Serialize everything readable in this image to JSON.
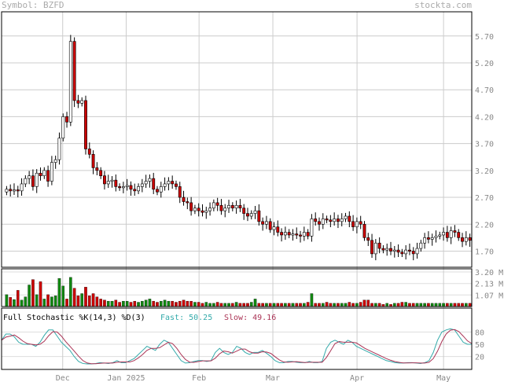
{
  "header": {
    "symbol_label": "Symbol: BZFD",
    "site": "stockta.com"
  },
  "chart_data": [
    {
      "type": "candlestick",
      "title": "",
      "yticks": [
        "5.70",
        "5.20",
        "4.70",
        "4.20",
        "3.70",
        "3.20",
        "2.70",
        "2.20",
        "1.70"
      ],
      "ylim": [
        1.4,
        6.15
      ],
      "grid": true,
      "xticks": [
        "Dec",
        "Jan 2025",
        "Feb",
        "Mar",
        "Apr",
        "May"
      ],
      "colors": {
        "up": "#ffffff",
        "down": "#cc0000",
        "wick": "#000000"
      },
      "close": [
        2.85,
        2.82,
        2.84,
        2.82,
        2.95,
        3.05,
        3.1,
        2.9,
        3.15,
        3.1,
        3.2,
        3.0,
        3.35,
        3.4,
        3.8,
        4.2,
        4.1,
        5.6,
        4.5,
        4.45,
        4.5,
        3.6,
        3.5,
        3.25,
        3.2,
        3.1,
        2.95,
        3.0,
        3.02,
        2.9,
        2.88,
        2.9,
        2.92,
        2.85,
        2.82,
        2.9,
        2.95,
        3.0,
        3.05,
        2.85,
        2.8,
        2.9,
        2.95,
        3.0,
        2.95,
        2.9,
        2.7,
        2.62,
        2.6,
        2.45,
        2.5,
        2.45,
        2.42,
        2.45,
        2.5,
        2.6,
        2.55,
        2.45,
        2.5,
        2.55,
        2.5,
        2.55,
        2.5,
        2.4,
        2.35,
        2.4,
        2.45,
        2.25,
        2.2,
        2.25,
        2.1,
        2.15,
        2.05,
        2.0,
        2.05,
        2.0,
        2.02,
        2.0,
        1.98,
        2.05,
        1.98,
        2.3,
        2.25,
        2.2,
        2.3,
        2.28,
        2.25,
        2.3,
        2.25,
        2.3,
        2.35,
        2.25,
        2.15,
        2.25,
        2.2,
        1.95,
        1.9,
        1.65,
        1.85,
        1.75,
        1.72,
        1.75,
        1.7,
        1.72,
        1.68,
        1.65,
        1.72,
        1.7,
        1.65,
        1.75,
        1.85,
        1.95,
        1.92,
        1.95,
        1.98,
        2.0,
        2.05,
        1.95,
        2.08,
        2.05,
        1.95,
        1.88,
        1.95,
        1.9
      ],
      "volume_axis": {
        "ticks": [
          "3.20 M",
          "2.13 M",
          "1.07 M"
        ],
        "max_millions": 3.2
      },
      "volume_millions": [
        1.1,
        0.85,
        0.65,
        1.5,
        0.6,
        0.9,
        2.0,
        2.5,
        1.1,
        2.3,
        0.7,
        1.1,
        0.9,
        1.0,
        2.6,
        1.9,
        0.7,
        2.7,
        1.7,
        1.0,
        1.2,
        1.8,
        1.0,
        1.2,
        0.9,
        0.7,
        0.6,
        0.5,
        0.5,
        0.6,
        0.4,
        0.5,
        0.5,
        0.4,
        0.5,
        0.4,
        0.5,
        0.6,
        0.7,
        0.5,
        0.4,
        0.5,
        0.6,
        0.5,
        0.5,
        0.4,
        0.5,
        0.6,
        0.5,
        0.5,
        0.4,
        0.4,
        0.3,
        0.4,
        0.3,
        0.3,
        0.4,
        0.3,
        0.3,
        0.3,
        0.3,
        0.4,
        0.3,
        0.3,
        0.3,
        0.4,
        0.7,
        0.3,
        0.3,
        0.3,
        0.3,
        0.3,
        0.3,
        0.3,
        0.3,
        0.3,
        0.3,
        0.3,
        0.3,
        0.3,
        0.4,
        1.2,
        0.3,
        0.3,
        0.3,
        0.4,
        0.3,
        0.3,
        0.3,
        0.3,
        0.3,
        0.4,
        0.3,
        0.3,
        0.4,
        0.6,
        0.6,
        0.3,
        0.3,
        0.3,
        0.2,
        0.3,
        0.2,
        0.3,
        0.3,
        0.4,
        0.4,
        0.3,
        0.3,
        0.3,
        0.3,
        0.3,
        0.3,
        0.3,
        0.3,
        0.3,
        0.3,
        0.3,
        0.3,
        0.3,
        0.3,
        0.3,
        0.3,
        0.3
      ],
      "stochastic": {
        "label": "Full Stochastic %K(14,3) %D(3)",
        "fast_label": "Fast: 50.25",
        "slow_label": "Slow: 49.16",
        "yticks": [
          "80",
          "50",
          "20"
        ],
        "fast_color": "#33aaaa",
        "slow_color": "#aa3355",
        "fast": [
          60,
          75,
          75,
          68,
          55,
          50,
          50,
          50,
          45,
          55,
          72,
          85,
          85,
          70,
          55,
          45,
          35,
          20,
          8,
          3,
          2,
          2,
          3,
          5,
          4,
          3,
          5,
          10,
          5,
          5,
          10,
          15,
          25,
          35,
          45,
          40,
          35,
          50,
          60,
          55,
          40,
          25,
          10,
          4,
          5,
          8,
          10,
          10,
          8,
          10,
          30,
          40,
          30,
          25,
          30,
          45,
          40,
          30,
          25,
          30,
          30,
          35,
          28,
          20,
          10,
          5,
          5,
          8,
          8,
          6,
          5,
          5,
          8,
          5,
          5,
          8,
          40,
          55,
          60,
          55,
          50,
          60,
          55,
          45,
          40,
          35,
          30,
          25,
          20,
          15,
          10,
          8,
          5,
          4,
          4,
          5,
          5,
          4,
          3,
          5,
          10,
          30,
          60,
          80,
          85,
          88,
          85,
          70,
          55,
          50,
          50
        ]
      }
    }
  ]
}
